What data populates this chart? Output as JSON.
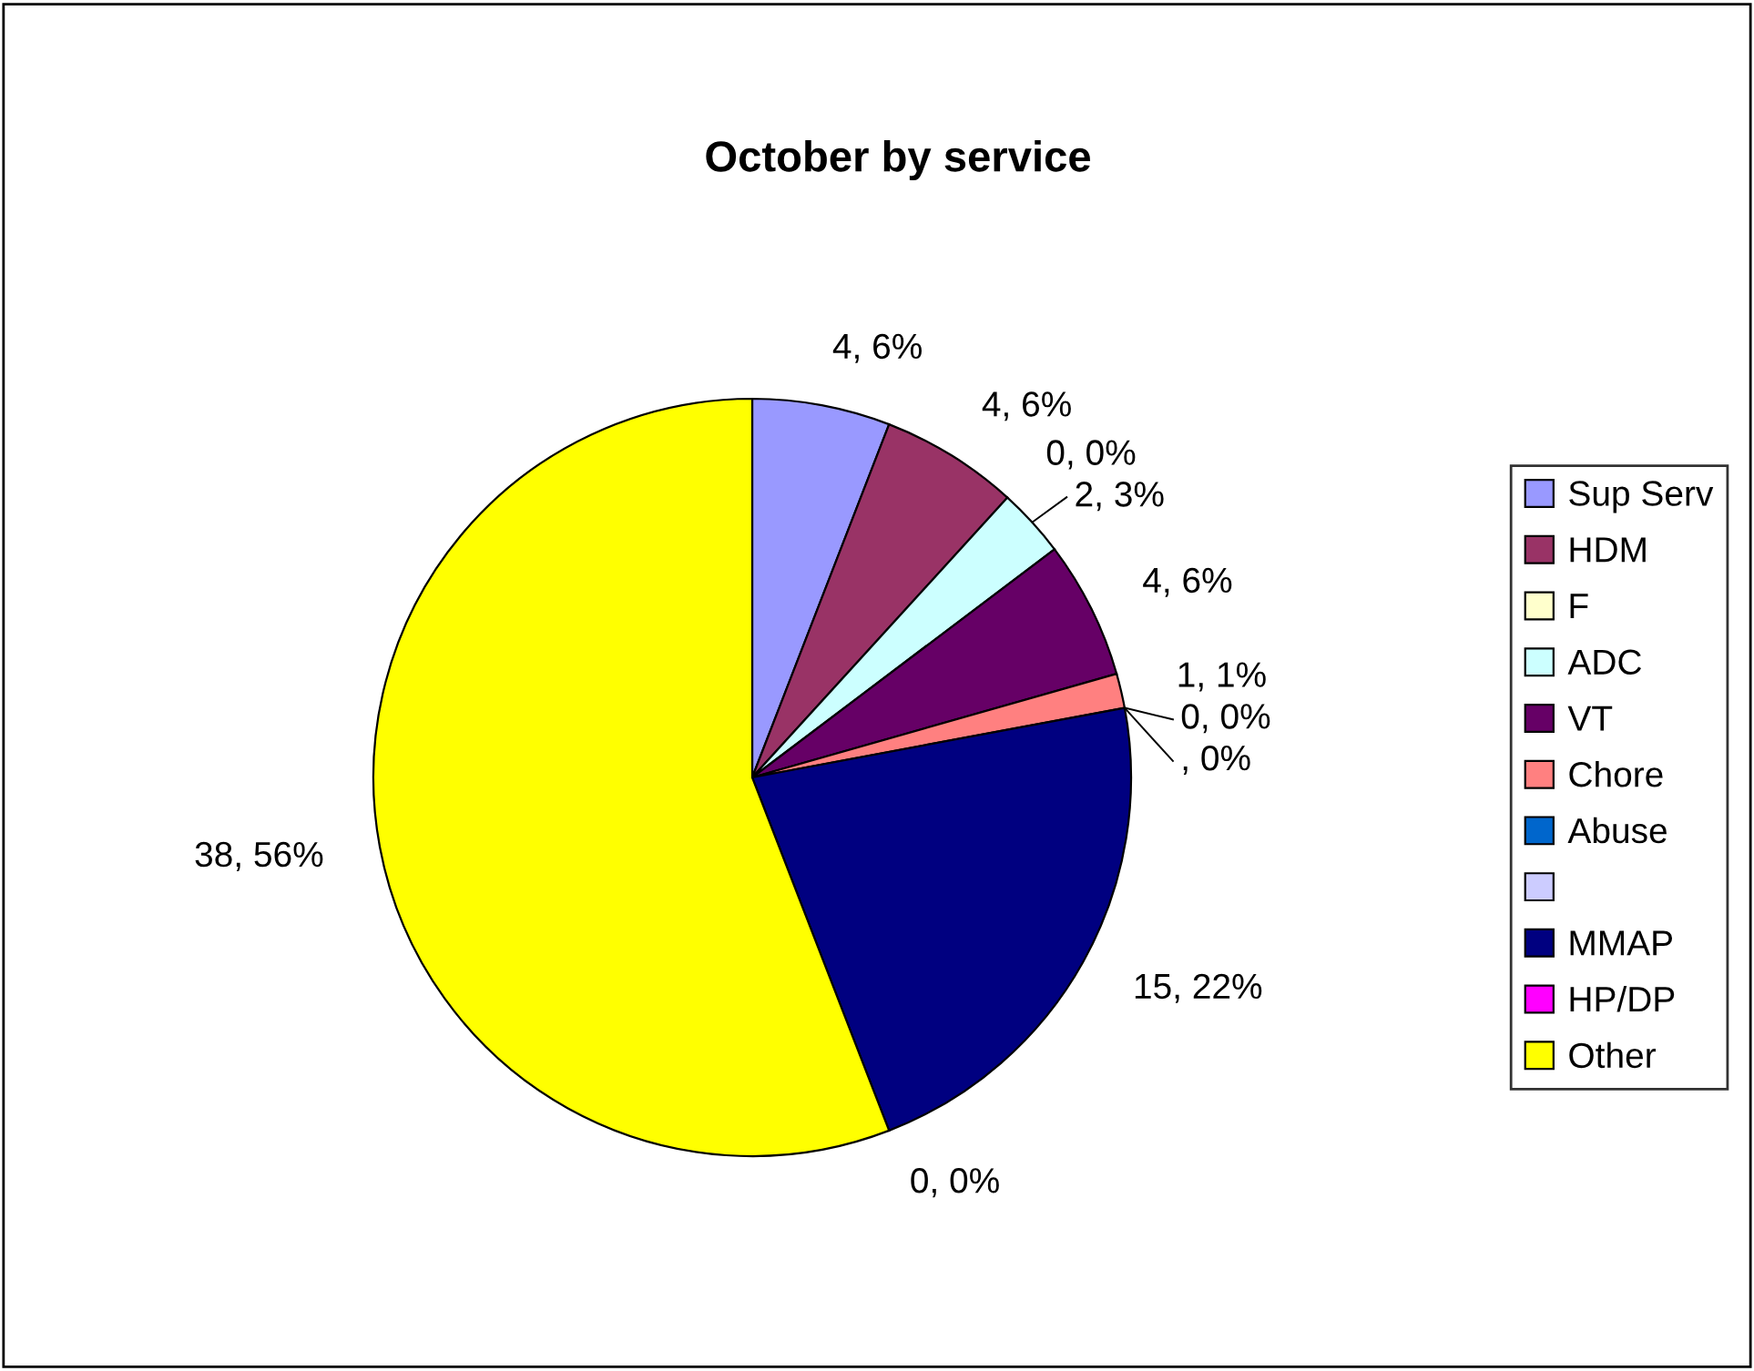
{
  "chart_data": {
    "type": "pie",
    "title": "October by service",
    "categories": [
      "Sup Serv",
      "HDM",
      "F",
      "ADC",
      "VT",
      "Chore",
      "Abuse",
      null,
      "MMAP",
      "HP/DP",
      "Other"
    ],
    "values": [
      4,
      4,
      0,
      2,
      4,
      1,
      0,
      0,
      15,
      0,
      38
    ],
    "value_labels": [
      "4, 6%",
      "4, 6%",
      "0, 0%",
      "2, 3%",
      "4, 6%",
      "1, 1%",
      "0, 0%",
      ", 0%",
      "15, 22%",
      "0, 0%",
      "38, 56%"
    ],
    "colors": [
      "#9999ff",
      "#993366",
      "#ffffcc",
      "#ccffff",
      "#660066",
      "#ff8080",
      "#0066cc",
      "#ccccff",
      "#000080",
      "#ff00ff",
      "#ffff00"
    ],
    "legend": "right"
  }
}
